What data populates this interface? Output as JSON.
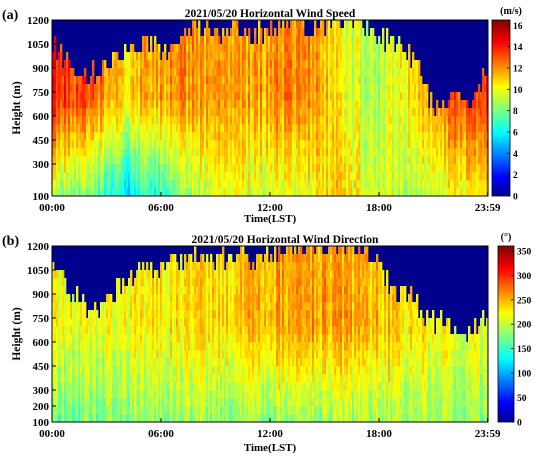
{
  "chart_data": [
    {
      "type": "heatmap",
      "panel_label": "(a)",
      "title": "2021/05/20 Horizontal Wind Speed",
      "xlabel": "Time(LST)",
      "ylabel": "Height (m)",
      "x_ticks": [
        "00:00",
        "06:00",
        "12:00",
        "18:00",
        "23:59"
      ],
      "x_tick_hours": [
        0,
        6,
        12,
        18,
        23.98
      ],
      "xlim": [
        0,
        24
      ],
      "y_ticks": [
        100,
        300,
        450,
        600,
        750,
        900,
        1050,
        1200
      ],
      "ylim": [
        100,
        1200
      ],
      "colorbar": {
        "unit": "(m/s)",
        "ticks": [
          0,
          2,
          4,
          6,
          8,
          10,
          12,
          14,
          16
        ],
        "range": [
          0,
          16.5
        ],
        "colormap": "jet"
      },
      "no_data_color": "#00008c",
      "data_ceiling": {
        "hours": [
          0,
          1,
          2,
          3,
          4,
          5,
          6,
          7,
          8,
          9,
          10,
          11,
          12,
          13,
          14,
          15,
          16,
          17,
          18,
          19,
          20,
          21,
          22,
          23,
          24
        ],
        "heights": [
          1080,
          900,
          860,
          920,
          1000,
          1060,
          1000,
          1100,
          1160,
          1120,
          1170,
          1100,
          1150,
          1200,
          1180,
          1160,
          1200,
          1200,
          1110,
          1030,
          960,
          620,
          730,
          680,
          920
        ]
      },
      "typical_values": {
        "hours": [
          0,
          2,
          4,
          6,
          8,
          10,
          12,
          14,
          16,
          18,
          20,
          22,
          24
        ],
        "low_level_speed": [
          9,
          8,
          6,
          7,
          9,
          10,
          9.5,
          10,
          11,
          9.5,
          9,
          10,
          11
        ],
        "mid_level_speed": [
          14,
          13,
          11,
          12,
          12,
          11.5,
          12,
          12.5,
          10,
          9,
          11,
          13,
          14
        ]
      }
    },
    {
      "type": "heatmap",
      "panel_label": "(b)",
      "title": "2021/05/20 Horizontal Wind Direction",
      "xlabel": "Time(LST)",
      "ylabel": "Height (m)",
      "x_ticks": [
        "00:00",
        "06:00",
        "12:00",
        "18:00",
        "23:59"
      ],
      "x_tick_hours": [
        0,
        6,
        12,
        18,
        23.98
      ],
      "xlim": [
        0,
        24
      ],
      "y_ticks": [
        100,
        200,
        300,
        450,
        600,
        750,
        900,
        1050,
        1200
      ],
      "ylim": [
        100,
        1200
      ],
      "colorbar": {
        "unit": "(°)",
        "ticks": [
          0,
          50,
          100,
          150,
          200,
          250,
          300,
          350
        ],
        "range": [
          0,
          360
        ],
        "colormap": "jet"
      },
      "no_data_color": "#00008c",
      "data_ceiling": {
        "hours": [
          0,
          1,
          2,
          3,
          4,
          5,
          6,
          7,
          8,
          9,
          10,
          11,
          12,
          13,
          14,
          15,
          16,
          17,
          18,
          19,
          20,
          21,
          22,
          23,
          24
        ],
        "heights": [
          1050,
          920,
          800,
          860,
          980,
          1050,
          1060,
          1120,
          1140,
          1100,
          1150,
          1120,
          1160,
          1200,
          1190,
          1180,
          1200,
          1170,
          1060,
          900,
          860,
          720,
          720,
          650,
          800
        ]
      },
      "typical_values": {
        "hours": [
          0,
          3,
          6,
          9,
          12,
          15,
          18,
          21,
          24
        ],
        "low_level_direction": [
          175,
          180,
          185,
          190,
          185,
          190,
          195,
          190,
          185
        ],
        "upper_level_direction": [
          225,
          220,
          230,
          240,
          255,
          260,
          250,
          225,
          215
        ]
      }
    }
  ]
}
